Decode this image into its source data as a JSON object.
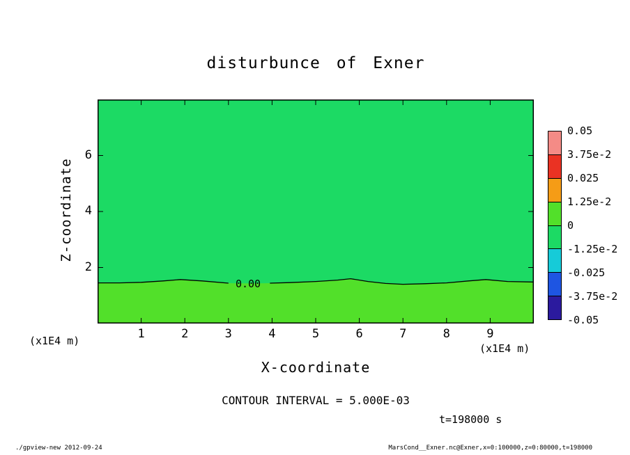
{
  "title": "disturbunce of Exner",
  "axes": {
    "x_label": "X-coordinate",
    "y_label": "Z-coordinate",
    "x_unit_left": "(x1E4 m)",
    "x_unit_right": "(x1E4 m)",
    "x_tick_labels": [
      "1",
      "2",
      "3",
      "4",
      "5",
      "6",
      "7",
      "8",
      "9"
    ],
    "y_tick_labels": [
      "2",
      "4",
      "6"
    ]
  },
  "annotations": {
    "contour_interval": "CONTOUR INTERVAL = 5.000E-03",
    "time": "t=198000 s",
    "footer_left": "./gpview-new  2012-09-24",
    "footer_right": "MarsCond__Exner.nc@Exner,x=0:100000,z=0:80000,t=198000"
  },
  "colorbar": {
    "labels": [
      "0.05",
      "3.75e-2",
      "0.025",
      "1.25e-2",
      "0",
      "-1.25e-2",
      "-0.025",
      "-3.75e-2",
      "-0.05"
    ],
    "cell_colors_top_to_bottom": [
      "#f48b86",
      "#ea3223",
      "#f59c16",
      "#52e02a",
      "#1cda64",
      "#16cbd8",
      "#1e55e2",
      "#2b1a9e"
    ]
  },
  "chart_data": {
    "type": "heatmap",
    "subtype": "filled-contour",
    "title": "disturbunce of Exner",
    "xlabel": "X-coordinate (x1E4 m)",
    "ylabel": "Z-coordinate (x1E4 m)",
    "xlim": [
      0,
      10
    ],
    "ylim": [
      0,
      8
    ],
    "x_ticks": [
      1,
      2,
      3,
      4,
      5,
      6,
      7,
      8,
      9
    ],
    "y_ticks": [
      2,
      4,
      6
    ],
    "grid": false,
    "legend_position": "colorbar-right",
    "contour_interval": 0.005,
    "colorbar_levels": [
      0.05,
      0.0375,
      0.025,
      0.0125,
      0,
      -0.0125,
      -0.025,
      -0.0375,
      -0.05
    ],
    "time_label": "t=198000 s",
    "regions": {
      "above_zero_contour": {
        "value_range": [
          -0.0125,
          0
        ],
        "color": "#1cda64",
        "description": "field in bin just below zero over most of the domain above the 0.00 contour"
      },
      "below_zero_contour": {
        "value_range": [
          0,
          0.0125
        ],
        "color": "#52e02a",
        "description": "field in bin just above zero in a shallow layer near the bottom boundary"
      }
    },
    "zero_contour": {
      "label": "0.00",
      "label_x": 3.45,
      "label_z": 1.43,
      "label_gap": [
        3.0,
        3.95
      ],
      "points": [
        [
          0,
          1.45
        ],
        [
          0.5,
          1.45
        ],
        [
          1,
          1.47
        ],
        [
          1.5,
          1.52
        ],
        [
          1.9,
          1.57
        ],
        [
          2.4,
          1.52
        ],
        [
          3.0,
          1.44
        ],
        [
          3.5,
          1.43
        ],
        [
          3.95,
          1.44
        ],
        [
          4.4,
          1.46
        ],
        [
          5.0,
          1.5
        ],
        [
          5.5,
          1.55
        ],
        [
          5.8,
          1.6
        ],
        [
          6.2,
          1.5
        ],
        [
          6.6,
          1.43
        ],
        [
          7.0,
          1.4
        ],
        [
          7.5,
          1.42
        ],
        [
          8.0,
          1.45
        ],
        [
          8.5,
          1.52
        ],
        [
          8.9,
          1.57
        ],
        [
          9.4,
          1.5
        ],
        [
          10,
          1.48
        ]
      ]
    }
  }
}
